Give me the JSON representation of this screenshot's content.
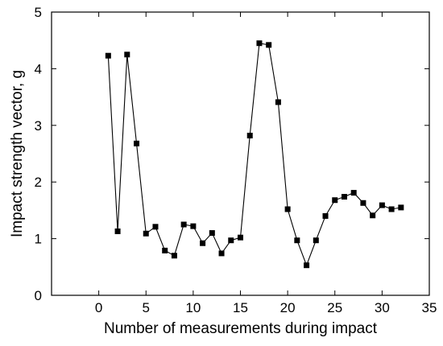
{
  "chart_data": {
    "type": "line",
    "title": "",
    "xlabel": "Number of measurements during impact",
    "ylabel": "Impact strength vector, g",
    "xlim": [
      -5,
      35
    ],
    "ylim": [
      0,
      5
    ],
    "x_ticks": [
      0,
      5,
      10,
      15,
      20,
      25,
      30,
      35
    ],
    "y_ticks": [
      0,
      1,
      2,
      3,
      4,
      5
    ],
    "x_tick_labels": [
      "0",
      "5",
      "10",
      "15",
      "20",
      "25",
      "30",
      "35"
    ],
    "y_tick_labels": [
      "0",
      "1",
      "2",
      "3",
      "4",
      "5"
    ],
    "grid": false,
    "legend": "none",
    "marker": "square",
    "line_color": "#000000",
    "marker_color": "#000000",
    "series": [
      {
        "x": [
          1,
          2,
          3,
          4,
          5,
          6,
          7,
          8,
          9,
          10,
          11,
          12,
          13,
          14,
          15,
          16,
          17,
          18,
          19,
          20,
          21,
          22,
          23,
          24,
          25,
          26,
          27,
          28,
          29,
          30,
          31,
          32
        ],
        "values": [
          4.23,
          1.13,
          4.25,
          2.68,
          1.09,
          1.21,
          0.79,
          0.7,
          1.25,
          1.22,
          0.92,
          1.1,
          0.74,
          0.97,
          1.02,
          2.82,
          4.45,
          4.42,
          3.41,
          1.52,
          0.97,
          0.53,
          0.97,
          1.4,
          1.68,
          1.74,
          1.81,
          1.63,
          1.41,
          1.59,
          1.52,
          1.55
        ]
      }
    ]
  }
}
